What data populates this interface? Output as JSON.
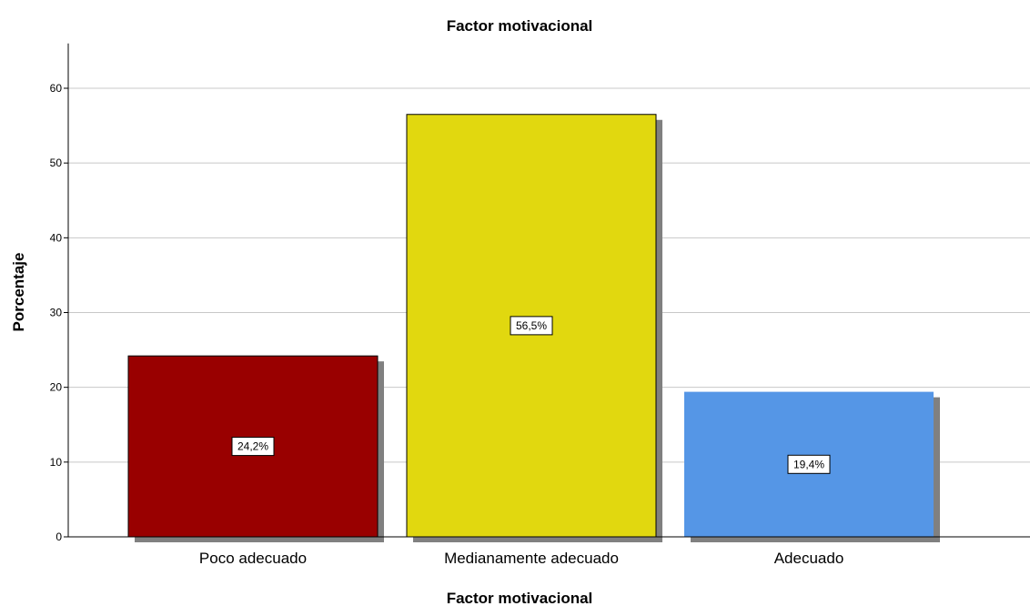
{
  "chart_data": {
    "type": "bar",
    "title": "Factor motivacional",
    "xlabel": "Factor motivacional",
    "ylabel": "Porcentaje",
    "categories": [
      "Poco adecuado",
      "Medianamente adecuado",
      "Adecuado"
    ],
    "values": [
      24.2,
      56.5,
      19.4
    ],
    "data_labels": [
      "24,2%",
      "56,5%",
      "19,4%"
    ],
    "colors": [
      "#990000",
      "#E1D80F",
      "#5596E6"
    ],
    "shadow_color": "#808080",
    "ylim": [
      0,
      66
    ],
    "yticks": [
      0,
      10,
      20,
      30,
      40,
      50,
      60
    ],
    "grid": true,
    "legend": false
  }
}
